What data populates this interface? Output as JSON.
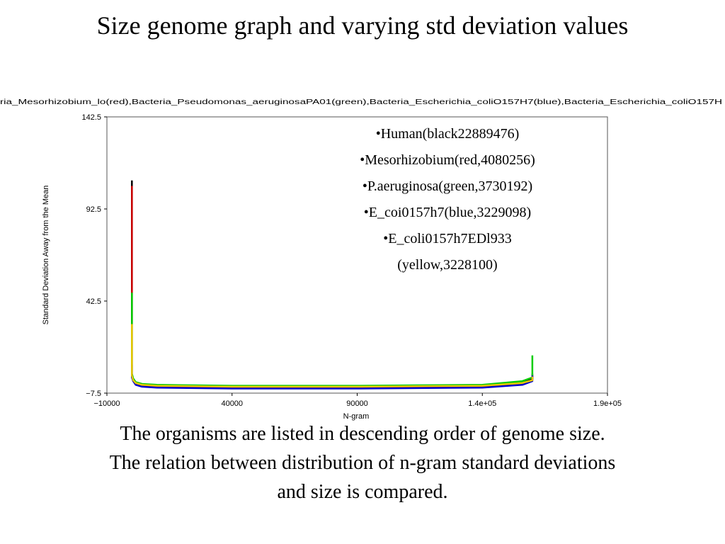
{
  "slide": {
    "title": "Size genome graph and varying std deviation values",
    "caption": [
      "The organisms are listed in descending order of genome size.",
      "The relation between distribution of n-gram standard deviations",
      "and size is compared."
    ]
  },
  "chart_data": {
    "type": "line",
    "header_text": "ria_Mesorhizobium_lo(red),Bacteria_Pseudomonas_aeruginosaPA01(green),Bacteria_Escherichia_coliO157H7(blue),Bacteria_Escherichia_coliO157H",
    "xlabel": "N-gram",
    "ylabel": "Standard Deviation Away from the Mean",
    "xlim": [
      -10000,
      190000
    ],
    "ylim": [
      -7.5,
      142.5
    ],
    "x_ticks": [
      {
        "value": -10000,
        "label": "−10000"
      },
      {
        "value": 40000,
        "label": "40000"
      },
      {
        "value": 90000,
        "label": "90000"
      },
      {
        "value": 140000,
        "label": "1.4e+05"
      },
      {
        "value": 190000,
        "label": "1.9e+05"
      }
    ],
    "y_ticks": [
      {
        "value": -7.5,
        "label": "−7.5"
      },
      {
        "value": 42.5,
        "label": "42.5"
      },
      {
        "value": 92.5,
        "label": "92.5"
      },
      {
        "value": 142.5,
        "label": "142.5"
      }
    ],
    "legend": [
      "•Human(black22889476)",
      "•Mesorhizobium(red,4080256)",
      "•P.aeruginosa(green,3730192)",
      "•E_coi0157h7(blue,3229098)",
      "•E_coli0157h7EDl933",
      "(yellow,3228100)"
    ],
    "series": [
      {
        "color": "#000000",
        "x": [
          0,
          0,
          500,
          1500,
          4000,
          10000,
          40000,
          90000,
          140000,
          156000,
          160000,
          160000
        ],
        "y": [
          108,
          3,
          0,
          -2,
          -3,
          -3.5,
          -4,
          -4,
          -3.5,
          -2,
          0,
          3
        ]
      },
      {
        "color": "#cc0000",
        "x": [
          0,
          0,
          500,
          1500,
          4000,
          10000,
          40000,
          90000,
          140000,
          156000,
          160000,
          160000
        ],
        "y": [
          105,
          2,
          -0.5,
          -2.5,
          -3.5,
          -4,
          -4.5,
          -4.5,
          -4,
          -2.5,
          -0.5,
          2
        ]
      },
      {
        "color": "#00cc00",
        "x": [
          0,
          0,
          500,
          1500,
          4000,
          10000,
          40000,
          90000,
          140000,
          156000,
          160000,
          160000
        ],
        "y": [
          47,
          3,
          0.5,
          -1.5,
          -2.5,
          -3,
          -3.5,
          -3.5,
          -3,
          -1,
          1,
          13
        ]
      },
      {
        "color": "#0000cc",
        "x": [
          0,
          0,
          500,
          1500,
          4000,
          10000,
          40000,
          90000,
          140000,
          156000,
          160000,
          160000
        ],
        "y": [
          8,
          1,
          -1,
          -3,
          -4,
          -4.5,
          -5,
          -5,
          -4.5,
          -3,
          -1,
          2
        ]
      },
      {
        "color": "#e6c800",
        "x": [
          0,
          0,
          500,
          1500,
          4000,
          10000,
          40000,
          90000,
          140000,
          156000,
          160000,
          160000
        ],
        "y": [
          30,
          2,
          -0.5,
          -2,
          -3,
          -3.5,
          -4,
          -4,
          -3.5,
          -2,
          -0.5,
          1.5
        ]
      }
    ]
  }
}
